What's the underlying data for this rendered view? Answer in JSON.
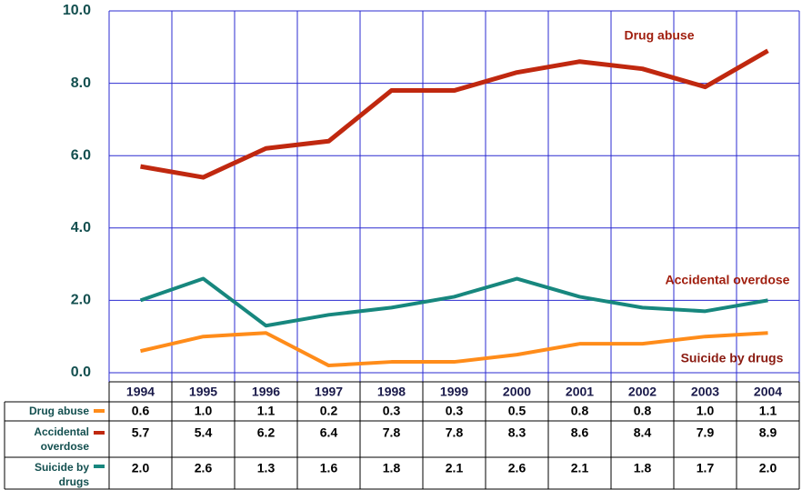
{
  "chart_data": {
    "type": "line",
    "categories": [
      "1994",
      "1995",
      "1996",
      "1997",
      "1998",
      "1999",
      "2000",
      "2001",
      "2002",
      "2003",
      "2004"
    ],
    "series": [
      {
        "name": "Drug abuse",
        "color": "#ff8c1a",
        "values": [
          0.6,
          1.0,
          1.1,
          0.2,
          0.3,
          0.3,
          0.5,
          0.8,
          0.8,
          1.0,
          1.1
        ],
        "value_labels": [
          "0.6",
          "1.0",
          "1.1",
          "0.2",
          "0.3",
          "0.3",
          "0.5",
          "0.8",
          "0.8",
          "1.0",
          "1.1"
        ]
      },
      {
        "name": "Accidental overdose",
        "color": "#c0280f",
        "values": [
          5.7,
          5.4,
          6.2,
          6.4,
          7.8,
          7.8,
          8.3,
          8.6,
          8.4,
          7.9,
          8.9
        ],
        "value_labels": [
          "5.7",
          "5.4",
          "6.2",
          "6.4",
          "7.8",
          "7.8",
          "8.3",
          "8.6",
          "8.4",
          "7.9",
          "8.9"
        ]
      },
      {
        "name": "Suicide by drugs",
        "color": "#17877e",
        "values": [
          2.0,
          2.6,
          1.3,
          1.6,
          1.8,
          2.1,
          2.6,
          2.1,
          1.8,
          1.7,
          2.0
        ],
        "value_labels": [
          "2.0",
          "2.6",
          "1.3",
          "1.6",
          "1.8",
          "2.1",
          "2.6",
          "2.1",
          "1.8",
          "1.7",
          "2.0"
        ]
      }
    ],
    "ylim": [
      0,
      10
    ],
    "yticks": [
      {
        "value": 0,
        "label": "0.0"
      },
      {
        "value": 2,
        "label": "2.0"
      },
      {
        "value": 4,
        "label": "4.0"
      },
      {
        "value": 6,
        "label": "6.0"
      },
      {
        "value": 8,
        "label": "8.0"
      },
      {
        "value": 10,
        "label": "10.0"
      }
    ],
    "grid": true
  }
}
